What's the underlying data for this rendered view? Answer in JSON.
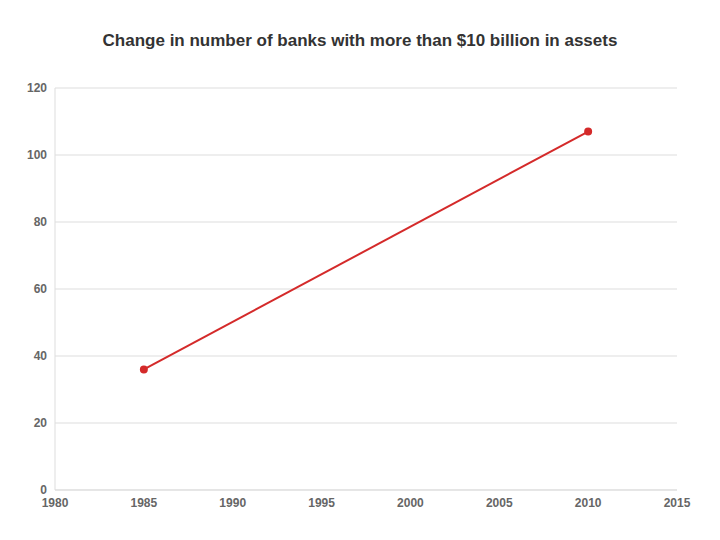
{
  "chart_data": {
    "type": "line",
    "title": "Change in number of banks with more than $10 billion in assets",
    "x": [
      1985,
      2010
    ],
    "values": [
      36,
      107
    ],
    "color": "#d42a2a",
    "xlim": [
      1980,
      2015
    ],
    "xticks": [
      1980,
      1985,
      1990,
      1995,
      2000,
      2005,
      2010,
      2015
    ],
    "ylim": [
      0,
      120
    ],
    "yticks": [
      0,
      20,
      40,
      60,
      80,
      100,
      120
    ],
    "grid": true
  }
}
